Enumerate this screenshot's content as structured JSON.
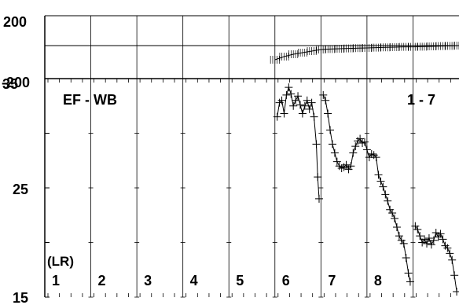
{
  "chart_data": [
    {
      "type": "scatter",
      "panel": "top",
      "title": "",
      "ylim": [
        -200,
        200
      ],
      "yticks": [
        "200",
        "-200"
      ],
      "grid": true,
      "series": [
        {
          "x": [
            5.0,
            5.2,
            5.4,
            5.6,
            5.8,
            6.0,
            6.2,
            6.4,
            6.6,
            6.8,
            7.0,
            7.2,
            7.4,
            7.6,
            7.8,
            8.0,
            8.2,
            8.4,
            8.6,
            8.8,
            9.0
          ],
          "y": [
            -80,
            -60,
            -45,
            -35,
            -25,
            -15,
            -12,
            -10,
            -8,
            -6,
            -5,
            -3,
            -1,
            0,
            2,
            2,
            3,
            5,
            7,
            8,
            10
          ]
        }
      ],
      "reference_y": 0
    },
    {
      "type": "scatter",
      "panel": "bottom",
      "title": "EF - WB",
      "annotation": "1 - 7",
      "ylabel": "(LR)",
      "ylim": [
        15,
        35
      ],
      "yticks": [
        "35",
        "25",
        "15"
      ],
      "grid": true,
      "xlim": [
        0,
        9
      ],
      "categories": [
        "1",
        "2",
        "3",
        "4",
        "5",
        "6",
        "7",
        "8"
      ],
      "series": [
        {
          "x": [
            5.05,
            5.1,
            5.15,
            5.2,
            5.25,
            5.3,
            5.35,
            5.4,
            5.45,
            5.5,
            5.55,
            5.6,
            5.65,
            5.7,
            5.75,
            5.8,
            5.85,
            5.9,
            5.93,
            5.96
          ],
          "y": [
            31.5,
            32.8,
            33.0,
            31.8,
            33.5,
            34.2,
            33.6,
            32.5,
            33.0,
            33.4,
            32.6,
            31.8,
            32.5,
            33.0,
            32.2,
            32.8,
            31.5,
            29.0,
            26.0,
            24.0
          ]
        },
        {
          "x": [
            6.05,
            6.1,
            6.15,
            6.2,
            6.25,
            6.3,
            6.35,
            6.4,
            6.45,
            6.5,
            6.55,
            6.6,
            6.65,
            6.7,
            6.75,
            6.8,
            6.85,
            6.9,
            6.95,
            7.0,
            7.05,
            7.1,
            7.15,
            7.2,
            7.25,
            7.3,
            7.35,
            7.4,
            7.45,
            7.5,
            7.55,
            7.6,
            7.65,
            7.7,
            7.75,
            7.8,
            7.85,
            7.9,
            7.94
          ],
          "y": [
            33.5,
            33.0,
            31.8,
            30.3,
            29.0,
            28.2,
            27.4,
            27.0,
            26.8,
            26.9,
            27.1,
            26.7,
            27.0,
            28.2,
            28.8,
            29.3,
            29.5,
            29.1,
            29.2,
            28.5,
            27.8,
            28.1,
            28.0,
            27.8,
            26.2,
            25.6,
            25.1,
            24.4,
            23.8,
            23.0,
            22.7,
            22.2,
            21.4,
            20.6,
            20.2,
            19.9,
            18.6,
            17.2,
            16.4
          ]
        },
        {
          "x": [
            8.05,
            8.1,
            8.15,
            8.2,
            8.25,
            8.3,
            8.35,
            8.4,
            8.45,
            8.5,
            8.55,
            8.6,
            8.65,
            8.7,
            8.75,
            8.8,
            8.85,
            8.9,
            8.95
          ],
          "y": [
            21.5,
            21.2,
            20.6,
            20.0,
            20.3,
            19.9,
            20.4,
            19.8,
            20.2,
            20.9,
            20.5,
            20.8,
            20.3,
            19.7,
            19.5,
            19.0,
            18.4,
            17.0,
            15.5
          ]
        }
      ]
    }
  ]
}
